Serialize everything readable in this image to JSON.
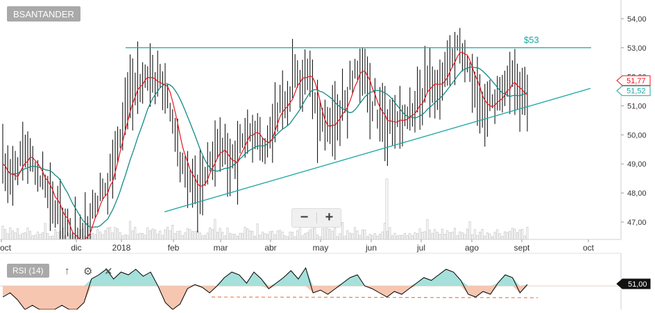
{
  "ticker": "BSANTANDER",
  "resistance_label": "$53",
  "rsi_label": "RSI (14)",
  "zoom": {
    "minus_label": "−",
    "plus_label": "+"
  },
  "tools": {
    "up_arrow": "arrow-up-icon",
    "gear": "gear-icon",
    "close": "close-icon"
  },
  "colors": {
    "price_bar": "#000000",
    "ma_fast": "#e8141c",
    "ma_slow": "#138a84",
    "trendline": "#19a7a0",
    "volume": "#c8c8c8",
    "rsi_line": "#000000",
    "rsi_above": "#a6e0da",
    "rsi_below": "#f7c6b0",
    "rsi_support": "#f08040",
    "tag_bg": "#a9a9a9",
    "price_tag_red": "#e8141c",
    "price_tag_green": "#19a7a0"
  },
  "chart_data": {
    "type": "line",
    "y_ticks": [
      "54,00",
      "53,00",
      "52,00",
      "51,00",
      "50,00",
      "49,00",
      "48,00",
      "47,00"
    ],
    "ylim": [
      46.4,
      54.5
    ],
    "x_ticks": [
      "oct",
      "dic",
      "2018",
      "feb",
      "mar",
      "abr",
      "may",
      "jun",
      "jul",
      "ago",
      "sept",
      "oct"
    ],
    "current_prices": {
      "ma_fast": "51,77",
      "ma_slow": "51,52"
    },
    "resistance": 53.0,
    "support_line": {
      "start": [
        "feb",
        47.35
      ],
      "end": [
        "oct",
        51.6
      ]
    },
    "price_series": [
      [
        "2017-10",
        49.0
      ],
      [
        "2017-10",
        48.5
      ],
      [
        "2017-10",
        48.9
      ],
      [
        "2017-10",
        49.3
      ],
      [
        "2017-11",
        49.1
      ],
      [
        "2017-11",
        48.6
      ],
      [
        "2017-11",
        48.2
      ],
      [
        "2017-11",
        47.6
      ],
      [
        "2017-11",
        47.0
      ],
      [
        "2017-12",
        46.5
      ],
      [
        "2017-12",
        46.3
      ],
      [
        "2017-12",
        46.5
      ],
      [
        "2017-12",
        47.5
      ],
      [
        "2017-12",
        48.0
      ],
      [
        "2018-01",
        48.3
      ],
      [
        "2018-01",
        49.4
      ],
      [
        "2018-01",
        50.5
      ],
      [
        "2018-01",
        51.4
      ],
      [
        "2018-01",
        52.0
      ],
      [
        "2018-01",
        52.2
      ],
      [
        "2018-01",
        51.6
      ],
      [
        "2018-01",
        51.9
      ],
      [
        "2018-01",
        51.3
      ],
      [
        "2018-02",
        50.0
      ],
      [
        "2018-02",
        49.0
      ],
      [
        "2018-02",
        48.2
      ],
      [
        "2018-02",
        47.8
      ],
      [
        "2018-02",
        48.9
      ],
      [
        "2018-02",
        49.3
      ],
      [
        "2018-03",
        49.6
      ],
      [
        "2018-03",
        49.0
      ],
      [
        "2018-03",
        49.2
      ],
      [
        "2018-03",
        49.8
      ],
      [
        "2018-03",
        50.1
      ],
      [
        "2018-03",
        50.0
      ],
      [
        "2018-04",
        49.6
      ],
      [
        "2018-04",
        50.3
      ],
      [
        "2018-04",
        51.0
      ],
      [
        "2018-04",
        51.4
      ],
      [
        "2018-04",
        51.9
      ],
      [
        "2018-04",
        52.0
      ],
      [
        "2018-04",
        52.4
      ],
      [
        "2018-05",
        50.6
      ],
      [
        "2018-05",
        50.3
      ],
      [
        "2018-05",
        50.6
      ],
      [
        "2018-05",
        50.9
      ],
      [
        "2018-05",
        51.4
      ],
      [
        "2018-05",
        52.2
      ],
      [
        "2018-05",
        52.1
      ],
      [
        "2018-06",
        51.4
      ],
      [
        "2018-06",
        50.9
      ],
      [
        "2018-06",
        50.6
      ],
      [
        "2018-06",
        50.5
      ],
      [
        "2018-06",
        50.4
      ],
      [
        "2018-06",
        50.7
      ],
      [
        "2018-07",
        50.8
      ],
      [
        "2018-07",
        51.3
      ],
      [
        "2018-07",
        51.8
      ],
      [
        "2018-07",
        51.5
      ],
      [
        "2018-07",
        51.9
      ],
      [
        "2018-07",
        52.8
      ],
      [
        "2018-08",
        52.9
      ],
      [
        "2018-08",
        52.3
      ],
      [
        "2018-08",
        51.5
      ],
      [
        "2018-08",
        51.0
      ],
      [
        "2018-08",
        50.9
      ],
      [
        "2018-08",
        51.3
      ],
      [
        "2018-09",
        51.8
      ],
      [
        "2018-09",
        51.9
      ],
      [
        "2018-09",
        51.4
      ],
      [
        "2018-09",
        51.5
      ]
    ],
    "rsi_series": [
      42,
      45,
      40,
      33,
      36,
      30,
      33,
      28,
      36,
      30,
      33,
      38,
      55,
      58,
      62,
      55,
      60,
      58,
      62,
      57,
      60,
      50,
      38,
      33,
      37,
      48,
      51,
      49,
      45,
      50,
      56,
      60,
      58,
      52,
      60,
      55,
      48,
      52,
      56,
      61,
      55,
      63,
      45,
      47,
      44,
      48,
      52,
      56,
      58,
      50,
      48,
      45,
      42,
      46,
      44,
      48,
      52,
      56,
      54,
      58,
      62,
      60,
      54,
      44,
      42,
      46,
      44,
      52,
      58,
      56,
      45,
      51
    ]
  }
}
